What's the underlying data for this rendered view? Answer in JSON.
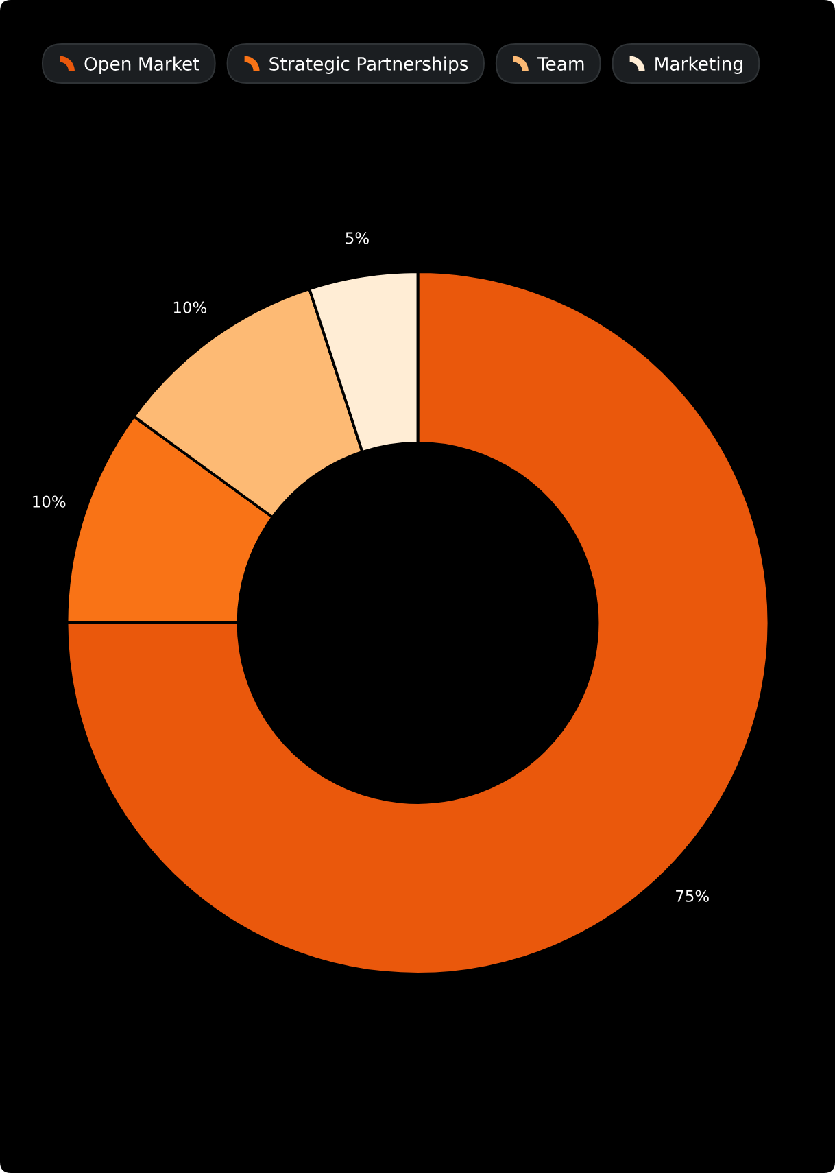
{
  "chart_data": {
    "type": "donut",
    "categories": [
      "Open Market",
      "Strategic Partnerships",
      "Team",
      "Marketing"
    ],
    "values": [
      75,
      10,
      10,
      5
    ],
    "colors": [
      "#ea580c",
      "#f97316",
      "#fdba74",
      "#ffedd5"
    ],
    "value_labels": [
      "75%",
      "10%",
      "10%",
      "5%"
    ],
    "legend": "top"
  }
}
